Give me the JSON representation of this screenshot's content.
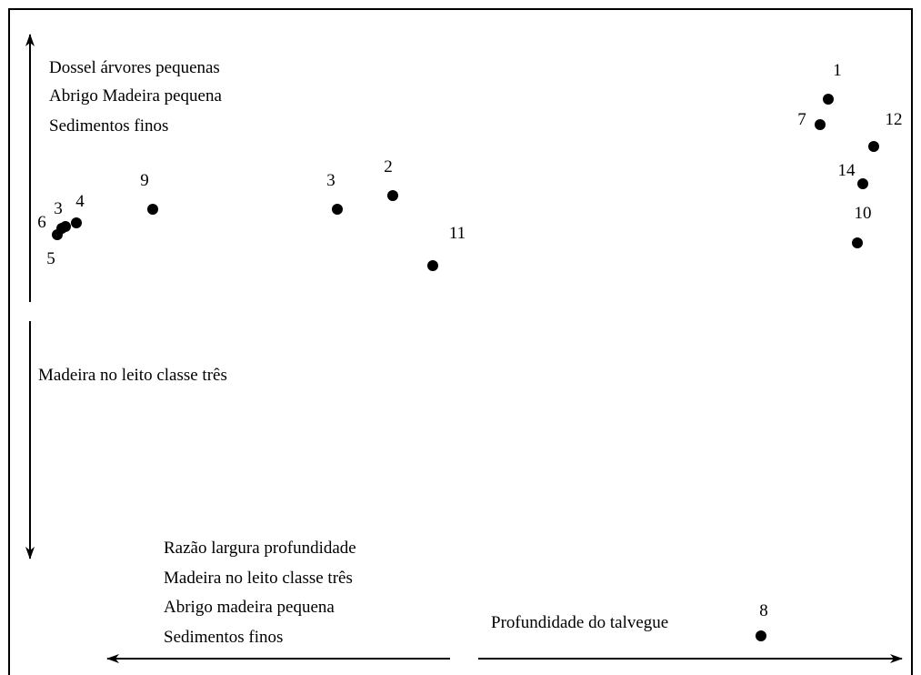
{
  "annotations": {
    "top_left": [
      "Dossel árvores pequenas",
      "Abrigo Madeira pequena",
      "Sedimentos finos"
    ],
    "middle_left": "Madeira no leito classe três",
    "bottom_left": [
      "Razão largura profundidade",
      "Madeira no leito classe três",
      "Abrigo madeira pequena",
      "Sedimentos finos"
    ],
    "bottom_right": "Profundidade do talvegue"
  },
  "points": [
    {
      "label": "1"
    },
    {
      "label": "7"
    },
    {
      "label": "12"
    },
    {
      "label": "14"
    },
    {
      "label": "10"
    },
    {
      "label": "9"
    },
    {
      "label": "3"
    },
    {
      "label": "2"
    },
    {
      "label": "11"
    },
    {
      "label": "6"
    },
    {
      "label": "3"
    },
    {
      "label": "4"
    },
    {
      "label": "5"
    },
    {
      "label": "8"
    }
  ]
}
